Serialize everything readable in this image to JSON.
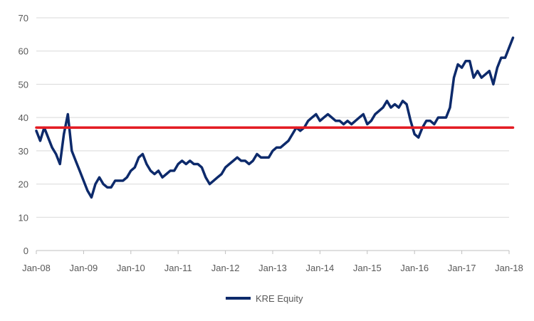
{
  "chart_data": {
    "type": "line",
    "title": "",
    "xlabel": "",
    "ylabel": "",
    "ylim": [
      0,
      70
    ],
    "yticks": [
      0,
      10,
      20,
      30,
      40,
      50,
      60,
      70
    ],
    "xticks": [
      "Jan-08",
      "Jan-09",
      "Jan-10",
      "Jan-11",
      "Jan-12",
      "Jan-13",
      "Jan-14",
      "Jan-15",
      "Jan-16",
      "Jan-17",
      "Jan-18"
    ],
    "grid": "horizontal",
    "legend_position": "bottom",
    "series": [
      {
        "name": "KRE Equity",
        "color": "#0d2a6b",
        "x": [
          "2008-01",
          "2008-02",
          "2008-03",
          "2008-04",
          "2008-05",
          "2008-06",
          "2008-07",
          "2008-08",
          "2008-09",
          "2008-10",
          "2008-11",
          "2008-12",
          "2009-01",
          "2009-02",
          "2009-03",
          "2009-04",
          "2009-05",
          "2009-06",
          "2009-07",
          "2009-08",
          "2009-09",
          "2009-10",
          "2009-11",
          "2009-12",
          "2010-01",
          "2010-02",
          "2010-03",
          "2010-04",
          "2010-05",
          "2010-06",
          "2010-07",
          "2010-08",
          "2010-09",
          "2010-10",
          "2010-11",
          "2010-12",
          "2011-01",
          "2011-02",
          "2011-03",
          "2011-04",
          "2011-05",
          "2011-06",
          "2011-07",
          "2011-08",
          "2011-09",
          "2011-10",
          "2011-11",
          "2011-12",
          "2012-01",
          "2012-02",
          "2012-03",
          "2012-04",
          "2012-05",
          "2012-06",
          "2012-07",
          "2012-08",
          "2012-09",
          "2012-10",
          "2012-11",
          "2012-12",
          "2013-01",
          "2013-02",
          "2013-03",
          "2013-04",
          "2013-05",
          "2013-06",
          "2013-07",
          "2013-08",
          "2013-09",
          "2013-10",
          "2013-11",
          "2013-12",
          "2014-01",
          "2014-02",
          "2014-03",
          "2014-04",
          "2014-05",
          "2014-06",
          "2014-07",
          "2014-08",
          "2014-09",
          "2014-10",
          "2014-11",
          "2014-12",
          "2015-01",
          "2015-02",
          "2015-03",
          "2015-04",
          "2015-05",
          "2015-06",
          "2015-07",
          "2015-08",
          "2015-09",
          "2015-10",
          "2015-11",
          "2015-12",
          "2016-01",
          "2016-02",
          "2016-03",
          "2016-04",
          "2016-05",
          "2016-06",
          "2016-07",
          "2016-08",
          "2016-09",
          "2016-10",
          "2016-11",
          "2016-12",
          "2017-01",
          "2017-02",
          "2017-03",
          "2017-04",
          "2017-05",
          "2017-06",
          "2017-07",
          "2017-08",
          "2017-09",
          "2017-10",
          "2017-11",
          "2017-12",
          "2018-01",
          "2018-02"
        ],
        "y": [
          36,
          33,
          37,
          34,
          31,
          29,
          26,
          35,
          41,
          30,
          27,
          24,
          21,
          18,
          16,
          20,
          22,
          20,
          19,
          19,
          21,
          21,
          21,
          22,
          24,
          25,
          28,
          29,
          26,
          24,
          23,
          24,
          22,
          23,
          24,
          24,
          26,
          27,
          26,
          27,
          26,
          26,
          25,
          22,
          20,
          21,
          22,
          23,
          25,
          26,
          27,
          28,
          27,
          27,
          26,
          27,
          29,
          28,
          28,
          28,
          30,
          31,
          31,
          32,
          33,
          35,
          37,
          36,
          37,
          39,
          40,
          41,
          39,
          40,
          41,
          40,
          39,
          39,
          38,
          39,
          38,
          39,
          40,
          41,
          38,
          39,
          41,
          42,
          43,
          45,
          43,
          44,
          43,
          45,
          44,
          39,
          35,
          34,
          37,
          39,
          39,
          38,
          40,
          40,
          40,
          43,
          52,
          56,
          55,
          57,
          57,
          52,
          54,
          52,
          53,
          54,
          50,
          55,
          58,
          58,
          61,
          64
        ]
      },
      {
        "name": "",
        "color": "#e31b23",
        "x": [
          "2008-01",
          "2018-02"
        ],
        "y": [
          37,
          37
        ]
      }
    ]
  }
}
